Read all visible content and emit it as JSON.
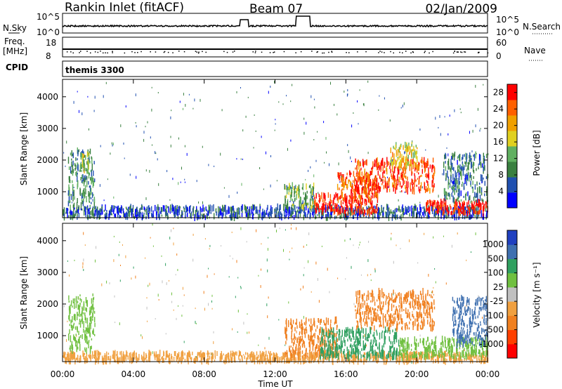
{
  "header": {
    "station": "Rankin Inlet (fitACF)",
    "beam": "Beam 07",
    "date": "02/Jan/2009"
  },
  "strip": {
    "nsky_label": "N.Sky",
    "nsearch_label": "N.Search",
    "noise_ticks_left": [
      "10^5",
      "10^0"
    ],
    "noise_ticks_right": [
      "10^5",
      "10^0"
    ],
    "freq_label_1": "Freq.",
    "freq_label_2": "[MHz]",
    "freq_ticks": [
      "18",
      "8"
    ],
    "nave_label": "Nave",
    "nave_ticks": [
      "60",
      "0"
    ],
    "cpid_label": "CPID",
    "cpid_value": "themis 3300"
  },
  "colors": {
    "power": [
      "#0000ff",
      "#2050b0",
      "#3a8040",
      "#60b060",
      "#e0d020",
      "#f0a000",
      "#ff6000",
      "#ff0000"
    ],
    "velocity": [
      "#2040c0",
      "#3f70b0",
      "#30a060",
      "#70c040",
      "#c0c0c0",
      "#f0a040",
      "#f08020",
      "#ff4000",
      "#ff0000"
    ]
  },
  "chart_data": [
    {
      "type": "heatmap",
      "name": "Power",
      "ylabel": "Slant Range [km]",
      "xlabel": "Time UT",
      "x_ticks": [
        "00:00",
        "04:00",
        "08:00",
        "12:00",
        "16:00",
        "20:00",
        "00:00"
      ],
      "y_ticks": [
        1000,
        2000,
        3000,
        4000
      ],
      "ylim": [
        180,
        4550
      ],
      "xlim_hours": [
        0,
        24
      ],
      "colorbar_label": "Power [dB]",
      "colorbar_ticks": [
        4,
        8,
        12,
        16,
        20,
        24,
        28
      ],
      "colorbar_range": [
        0,
        30
      ],
      "regions": [
        {
          "t0": 0,
          "t1": 24,
          "r0": 180,
          "r1": 520,
          "level": 6
        },
        {
          "t0": 0.3,
          "t1": 1.8,
          "r0": 500,
          "r1": 2300,
          "level": 10
        },
        {
          "t0": 1.0,
          "t1": 1.5,
          "r0": 1600,
          "r1": 2200,
          "level": 16
        },
        {
          "t0": 12.5,
          "t1": 14.2,
          "r0": 500,
          "r1": 1200,
          "level": 12
        },
        {
          "t0": 14.2,
          "t1": 17.8,
          "r0": 300,
          "r1": 900,
          "level": 28
        },
        {
          "t0": 15.5,
          "t1": 17.8,
          "r0": 700,
          "r1": 1600,
          "level": 24
        },
        {
          "t0": 16.5,
          "t1": 21.0,
          "r0": 1000,
          "r1": 2000,
          "level": 26
        },
        {
          "t0": 18.5,
          "t1": 20.0,
          "r0": 1800,
          "r1": 2500,
          "level": 18
        },
        {
          "t0": 20.5,
          "t1": 24,
          "r0": 300,
          "r1": 700,
          "level": 28
        },
        {
          "t0": 21.5,
          "t1": 24,
          "r0": 700,
          "r1": 2200,
          "level": 8
        }
      ]
    },
    {
      "type": "heatmap",
      "name": "Velocity",
      "ylabel": "Slant Range [km]",
      "xlabel": "Time UT",
      "x_ticks": [
        "00:00",
        "04:00",
        "08:00",
        "12:00",
        "16:00",
        "20:00",
        "00:00"
      ],
      "y_ticks": [
        1000,
        2000,
        3000,
        4000
      ],
      "ylim": [
        180,
        4550
      ],
      "xlim_hours": [
        0,
        24
      ],
      "colorbar_label": "Velocity [m s⁻¹]",
      "colorbar_ticks": [
        "1000",
        "500",
        "100",
        "25",
        "-25",
        "-100",
        "-500",
        "-1000"
      ],
      "regions": [
        {
          "t0": 0,
          "t1": 24,
          "r0": 180,
          "r1": 450,
          "level": "-100"
        },
        {
          "t0": 0.3,
          "t1": 1.8,
          "r0": 500,
          "r1": 2300,
          "level": "25"
        },
        {
          "t0": 12.5,
          "t1": 15.5,
          "r0": 300,
          "r1": 1500,
          "level": "-500"
        },
        {
          "t0": 14.5,
          "t1": 19.0,
          "r0": 300,
          "r1": 1200,
          "level": "100"
        },
        {
          "t0": 16.5,
          "t1": 21.0,
          "r0": 1200,
          "r1": 2400,
          "level": "-500"
        },
        {
          "t0": 19.0,
          "t1": 24,
          "r0": 300,
          "r1": 900,
          "level": "25"
        },
        {
          "t0": 22.0,
          "t1": 24,
          "r0": 700,
          "r1": 2200,
          "level": "500"
        }
      ]
    }
  ]
}
